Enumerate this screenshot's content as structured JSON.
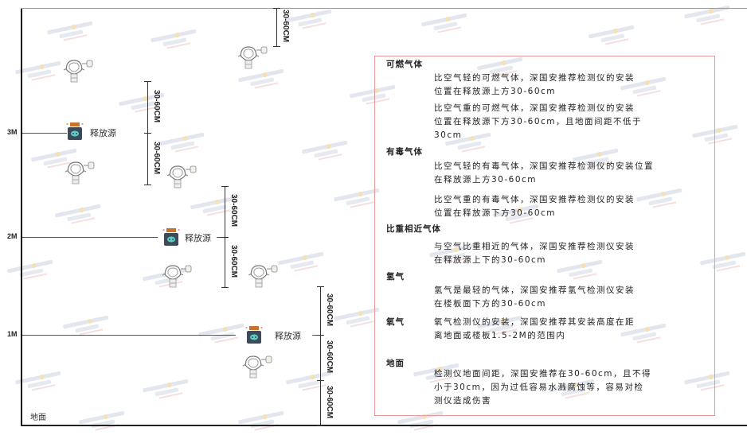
{
  "watermark": {
    "brand": "SINGOAN",
    "cn": "深国安"
  },
  "levels": [
    {
      "label": "3M"
    },
    {
      "label": "2M"
    },
    {
      "label": "1M"
    }
  ],
  "ground_label": "地面",
  "source_label": "释放源",
  "dimension_label": "30-60CM",
  "colors": {
    "panel_border": "#e89a9a",
    "source_body": "#3c4a5a",
    "source_cap": "#c9742a",
    "source_face": "#5fd0c8"
  },
  "panel": {
    "sections": [
      {
        "title": "可燃气体",
        "paragraphs": [
          [
            "比空气轻的可燃气体，深国安推荐检测仪的安装",
            "位置在释放源上方30-60cm"
          ],
          [
            "比空气重的可燃气体，深国安推荐检测仪的安装",
            "位置在释放源下方30-60cm，且地面间距不低于",
            "30cm"
          ]
        ]
      },
      {
        "title": "有毒气体",
        "paragraphs": [
          [
            "比空气轻的有毒气体，深国安推荐检测仪的安装位置",
            "在释放源上方30-60cm"
          ],
          [
            "比空气重的有毒气体，深国安推荐检测仪的安装",
            "位置在释放源下方30-60cm"
          ]
        ]
      },
      {
        "title": "比重相近气体",
        "paragraphs": [
          [
            "与空气比重相近的气体，深国安推荐检测仪安装",
            "在释放源上下的30-60cm"
          ]
        ]
      },
      {
        "title": "氢气",
        "paragraphs": [
          [
            "氢气是最轻的气体，深国安推荐氢气检测仪安装",
            "在楼板面下方的30-60cm"
          ]
        ]
      },
      {
        "title": "氧气",
        "paragraphs": [
          [
            "氧气检测仪的安装，深国安推荐其安装高度在距",
            "离地面或楼板1.5-2M的范围内"
          ]
        ]
      },
      {
        "title": "地面",
        "paragraphs": [
          [
            "检测仪地面间距，深国安推荐在30-60cm，且不得",
            "小于30cm，因为过低容易水溅腐蚀等，容易对检",
            "测仪造成伤害"
          ]
        ]
      }
    ]
  }
}
